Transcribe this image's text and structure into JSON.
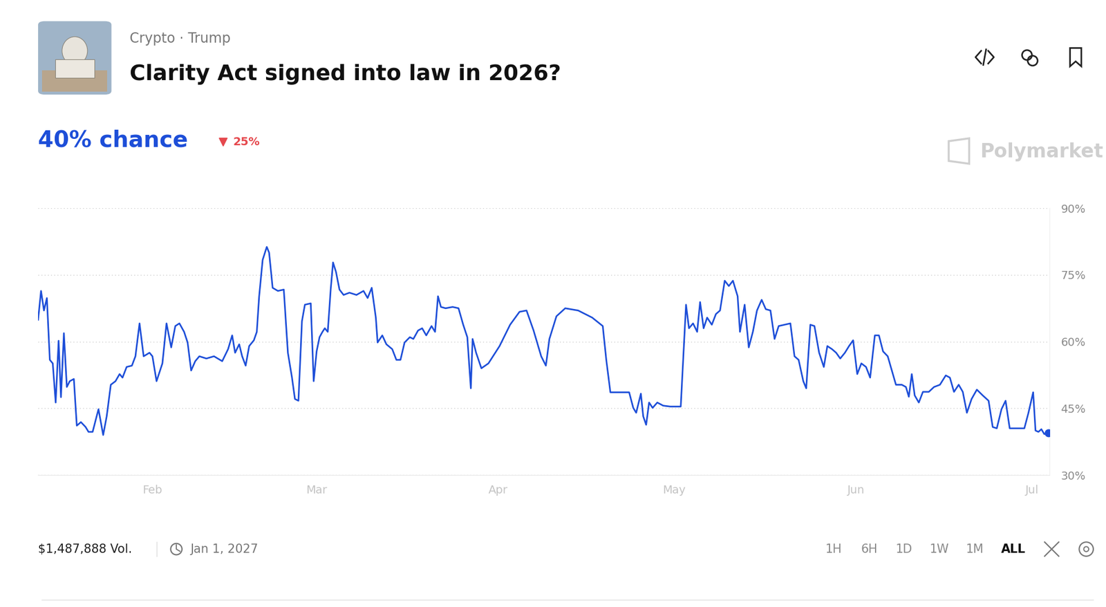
{
  "header": {
    "tags": "Crypto · Trump",
    "probability": "40% chance",
    "change": "25%",
    "brand": "Polymarket"
  },
  "chart_data": {
    "type": "line",
    "title": "Clarity Act signed into law in 2026?",
    "color": "#1d4ed8",
    "grid": true,
    "x": [
      12.5,
      13.0,
      13.5,
      14.0,
      14.5,
      15.0,
      15.5,
      16.0,
      16.4,
      16.9,
      17.4,
      17.9,
      18.6,
      19.1,
      19.8,
      20.6,
      21.1,
      21.8,
      22.8,
      23.6,
      24.2,
      24.9,
      25.7,
      26.4,
      26.9,
      27.6,
      28.5,
      29.1,
      29.8,
      30.5,
      31.5,
      32.0,
      32.7,
      33.7,
      34.4,
      35.2,
      35.9,
      36.6,
      37.4,
      38.0,
      38.6,
      39.3,
      40.0,
      41.2,
      42.5,
      43.9,
      44.9,
      45.6,
      46.1,
      46.8,
      47.3,
      47.9,
      48.5,
      49.3,
      49.8,
      50.2,
      50.8,
      51.5,
      51.9,
      52.5,
      53.4,
      54.4,
      55.1,
      55.8,
      56.3,
      56.9,
      57.5,
      58.0,
      59.0,
      59.5,
      60.0,
      60.5,
      61.0,
      61.4,
      61.9,
      62.4,
      62.8,
      63.3,
      63.9,
      64.6,
      65.6,
      66.8,
      68.0,
      68.7,
      69.4,
      70.1,
      70.4,
      71.2,
      71.9,
      72.9,
      73.6,
      74.3,
      75.0,
      75.9,
      76.5,
      77.3,
      78.0,
      78.7,
      79.6,
      80.2,
      80.7,
      81.2,
      82.0,
      83.2,
      84.2,
      85.0,
      85.7,
      86.3,
      86.6,
      87.2,
      88.1,
      89.3,
      91.2,
      93.0,
      94.6,
      95.8,
      97.0,
      98.3,
      99.1,
      99.7,
      100.9,
      102.4,
      104.6,
      107.0,
      108.8,
      109.4,
      110.1,
      111.8,
      113.3,
      114.0,
      114.5,
      115.3,
      115.7,
      116.2,
      116.7,
      117.3,
      118.1,
      119.1,
      120.3,
      122.1,
      123.0,
      123.5,
      124.2,
      124.9,
      125.4,
      126.0,
      126.6,
      127.4,
      128.1,
      128.8,
      129.6,
      130.3,
      131.0,
      131.8,
      132.2,
      133.0,
      133.7,
      134.4,
      135.1,
      135.9,
      136.6,
      137.4,
      138.1,
      138.8,
      139.8,
      140.8,
      141.5,
      142.2,
      143.0,
      143.5,
      144.2,
      144.9,
      145.7,
      146.5,
      147.1,
      147.9,
      148.6,
      149.3,
      150.1,
      150.8,
      151.5,
      152.2,
      152.9,
      153.7,
      154.4,
      155.2,
      155.9,
      156.6,
      157.4,
      158.1,
      158.8,
      159.8,
      160.5,
      161.0,
      161.5,
      162.0,
      162.7,
      163.4,
      164.4,
      165.3,
      166.3,
      167.3,
      168.0,
      168.7,
      169.5,
      170.2,
      170.9,
      171.7,
      172.6,
      173.6,
      174.6,
      175.3,
      176.0,
      176.8,
      177.5,
      178.2,
      179.3,
      180.7,
      181.4,
      182.2,
      182.6,
      183.1,
      183.6,
      184.1,
      184.8
    ],
    "values": [
      64.9,
      71.4,
      67.0,
      69.8,
      55.9,
      55.1,
      46.3,
      60.2,
      47.5,
      61.9,
      49.8,
      51.1,
      51.6,
      41.1,
      41.9,
      40.8,
      39.7,
      39.7,
      44.8,
      39.0,
      43.2,
      50.3,
      51.1,
      52.7,
      51.9,
      54.3,
      54.6,
      56.7,
      64.1,
      56.7,
      57.5,
      56.7,
      51.1,
      55.1,
      64.1,
      58.7,
      63.5,
      64.1,
      62.2,
      59.8,
      53.5,
      55.6,
      56.7,
      56.2,
      56.7,
      55.6,
      58.3,
      61.4,
      57.5,
      59.4,
      56.7,
      54.6,
      59.0,
      60.3,
      62.2,
      70.2,
      78.4,
      81.3,
      80.0,
      72.1,
      71.4,
      71.7,
      57.5,
      51.9,
      47.1,
      46.7,
      64.6,
      68.3,
      68.6,
      51.1,
      57.8,
      61.0,
      62.2,
      63.0,
      62.2,
      71.7,
      77.8,
      75.7,
      71.7,
      70.5,
      71.0,
      70.5,
      71.4,
      69.8,
      72.1,
      65.4,
      59.8,
      61.4,
      59.4,
      58.3,
      55.9,
      55.9,
      59.8,
      61.0,
      60.6,
      62.5,
      63.0,
      61.4,
      63.5,
      62.2,
      70.2,
      67.8,
      67.5,
      67.8,
      67.5,
      63.8,
      61.0,
      49.5,
      60.6,
      57.5,
      54.0,
      55.1,
      59.0,
      63.8,
      66.7,
      67.0,
      62.5,
      56.7,
      54.6,
      60.6,
      65.7,
      67.5,
      67.0,
      65.4,
      63.5,
      55.9,
      48.6,
      48.6,
      48.6,
      45.1,
      44.0,
      48.3,
      43.2,
      41.3,
      46.3,
      45.1,
      46.3,
      45.6,
      45.4,
      45.4,
      68.3,
      63.0,
      64.1,
      62.2,
      68.9,
      63.0,
      65.4,
      63.8,
      66.2,
      67.0,
      73.7,
      72.5,
      73.7,
      70.2,
      62.2,
      68.3,
      58.7,
      62.2,
      67.0,
      69.4,
      67.3,
      67.0,
      60.6,
      63.5,
      63.8,
      64.1,
      56.7,
      55.9,
      51.1,
      49.5,
      63.8,
      63.5,
      57.5,
      54.3,
      59.0,
      58.3,
      57.5,
      56.2,
      57.5,
      59.0,
      60.3,
      52.7,
      55.1,
      54.3,
      51.9,
      61.4,
      61.4,
      57.8,
      56.7,
      53.5,
      50.3,
      50.3,
      49.8,
      47.6,
      52.7,
      47.9,
      46.3,
      48.7,
      48.7,
      49.8,
      50.3,
      52.4,
      51.9,
      48.7,
      50.3,
      48.7,
      44.0,
      47.1,
      49.2,
      47.9,
      46.7,
      40.8,
      40.5,
      44.8,
      46.7,
      40.5,
      40.5,
      40.5,
      44.0,
      48.6,
      40.0,
      39.7,
      40.3,
      39.2,
      39.5
    ],
    "xlim": [
      12.5,
      185.0
    ],
    "xticks": [
      {
        "value": 32,
        "label": "Feb"
      },
      {
        "value": 60,
        "label": "Mar"
      },
      {
        "value": 91,
        "label": "Apr"
      },
      {
        "value": 121,
        "label": "May"
      },
      {
        "value": 152,
        "label": "Jun"
      },
      {
        "value": 182,
        "label": "Jul"
      }
    ],
    "ylim": [
      30,
      90
    ],
    "yticks": [
      {
        "value": 30,
        "label": "30%"
      },
      {
        "value": 45,
        "label": "45%"
      },
      {
        "value": 60,
        "label": "60%"
      },
      {
        "value": 75,
        "label": "75%"
      },
      {
        "value": 90,
        "label": "90%"
      }
    ]
  },
  "footer": {
    "volume": "$1,487,888 Vol.",
    "end_date": "Jan 1, 2027",
    "ranges": [
      "1H",
      "6H",
      "1D",
      "1W",
      "1M",
      "ALL"
    ],
    "selected_range": "ALL"
  }
}
